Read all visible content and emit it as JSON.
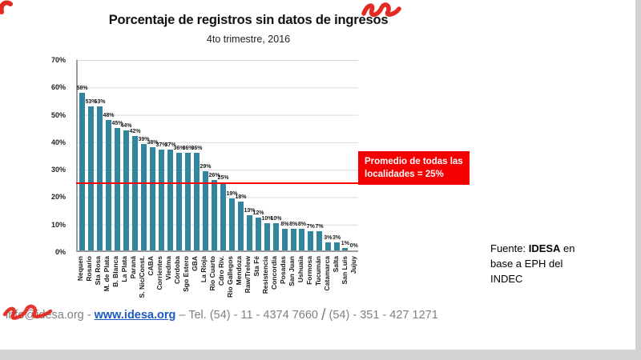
{
  "title": "Porcentaje de registros sin datos de ingresos",
  "subtitle": "4to trimestre, 2016",
  "annotation": {
    "line1": "Promedio de todas las",
    "line2": "localidades = 25%"
  },
  "source": {
    "prefix": "Fuente: ",
    "org": "IDESA",
    "rest": " en base a EPH del INDEC"
  },
  "footer": {
    "email": "info@idesa.org",
    "sep1": "-",
    "website": "www.idesa.org",
    "tel1": "– Tel. (54) - 11 - 4374 7660",
    "slash": "/",
    "tel2": "(54) - 351 - 427 1271"
  },
  "colors": {
    "bar": "#31859C",
    "average_line": "#FF0000",
    "annotation_bg": "#F50000",
    "link_blue": "#1B5BBF",
    "scribble_red": "#E32017"
  },
  "chart_data": {
    "type": "bar",
    "title": "Porcentaje de registros sin datos de ingresos",
    "subtitle": "4to trimestre, 2016",
    "categories": [
      "Nequen",
      "Rosario",
      "Sta Rosa",
      "M. de Plata",
      "B. Blanca",
      "La Plata",
      "Paraná",
      "S. Nic/Const.",
      "CABA",
      "Corrientes",
      "Viedma",
      "Córdoba",
      "Sgo Estero",
      "GBA",
      "La Rioja",
      "Rio Cuarto",
      "Cdro Riv.",
      "Rio Gallegos",
      "Mendoza",
      "Raw/Trelew",
      "Sta Fé",
      "Resistencia",
      "Concordia",
      "Posadas",
      "San Juan",
      "Ushuaia",
      "Formosa",
      "Tucumán",
      "Catamarca",
      "Salta",
      "San Luis",
      "Jujuy"
    ],
    "values": [
      58,
      53,
      53,
      48,
      45,
      44,
      42,
      39,
      38,
      37,
      37,
      36,
      36,
      36,
      29,
      26,
      25,
      19,
      18,
      13,
      12,
      10,
      10,
      8,
      8,
      8,
      7,
      7,
      3,
      3,
      1,
      0
    ],
    "xlabel": "",
    "ylabel": "",
    "ylim": [
      0,
      70
    ],
    "yticks": [
      0,
      10,
      20,
      30,
      40,
      50,
      60,
      70
    ],
    "grid": true,
    "legend": "none",
    "average_line": {
      "value": 25,
      "label": "Promedio de todas las localidades = 25%"
    }
  }
}
